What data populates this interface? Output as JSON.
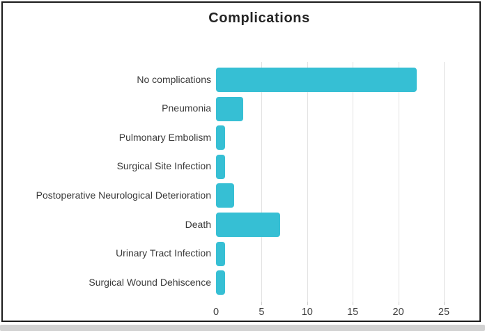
{
  "window": {
    "frame_border_color": "#1b1b1b",
    "bottom_strip_color": "#d2d2d2",
    "background_color": "#ffffff"
  },
  "chart_data": {
    "type": "bar",
    "orientation": "horizontal",
    "title": "Complications",
    "categories": [
      "No complications",
      "Pneumonia",
      "Pulmonary Embolism",
      "Surgical Site Infection",
      "Postoperative Neurological Deterioration",
      "Death",
      "Urinary Tract Infection",
      "Surgical Wound Dehiscence"
    ],
    "values": [
      22,
      3,
      1,
      1,
      2,
      7,
      1,
      1
    ],
    "xlabel": "",
    "ylabel": "",
    "xlim": [
      0,
      26
    ],
    "xticks": [
      0,
      5,
      10,
      15,
      20,
      25
    ],
    "bar_color": "#36bfd4",
    "gridline_color": "#e2e2e2",
    "grid": "vertical-only",
    "legend": "none",
    "title_color": "#252525",
    "label_color": "#3a3a3a",
    "tick_label_color": "#3d3d3d"
  }
}
